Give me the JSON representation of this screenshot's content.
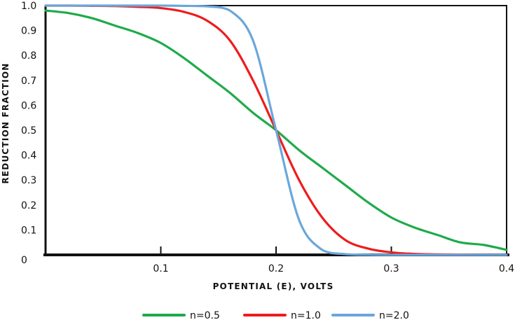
{
  "chart_data": {
    "type": "line",
    "title": "",
    "xlabel": "POTENTIAL (E), VOLTS",
    "ylabel": "REDUCTION FRACTION",
    "xlim": [
      0,
      0.4
    ],
    "ylim": [
      0,
      1.0
    ],
    "x_ticks": [
      {
        "value": 0.1,
        "label": "0.1"
      },
      {
        "value": 0.2,
        "label": "0.2"
      },
      {
        "value": 0.3,
        "label": "0.3"
      },
      {
        "value": 0.4,
        "label": "0.4"
      }
    ],
    "y_ticks": [
      {
        "value": 0,
        "label": "0"
      },
      {
        "value": 0.1,
        "label": "0.1"
      },
      {
        "value": 0.2,
        "label": "0.2"
      },
      {
        "value": 0.3,
        "label": "0.3"
      },
      {
        "value": 0.4,
        "label": "0.4"
      },
      {
        "value": 0.5,
        "label": "0.5"
      },
      {
        "value": 0.6,
        "label": "0.6"
      },
      {
        "value": 0.7,
        "label": "0.7"
      },
      {
        "value": 0.8,
        "label": "0.8"
      },
      {
        "value": 0.9,
        "label": "0.9"
      },
      {
        "value": 1.0,
        "label": "1.0"
      }
    ],
    "x": [
      0.0,
      0.02,
      0.04,
      0.06,
      0.08,
      0.1,
      0.12,
      0.14,
      0.16,
      0.18,
      0.2,
      0.22,
      0.24,
      0.26,
      0.28,
      0.3,
      0.32,
      0.34,
      0.36,
      0.38,
      0.4
    ],
    "series": [
      {
        "name": "n=0.5",
        "color": "#1faa4b",
        "values": [
          0.98,
          0.97,
          0.95,
          0.92,
          0.89,
          0.85,
          0.79,
          0.72,
          0.65,
          0.57,
          0.5,
          0.42,
          0.35,
          0.28,
          0.21,
          0.15,
          0.11,
          0.08,
          0.05,
          0.04,
          0.02
        ]
      },
      {
        "name": "n=1.0",
        "color": "#ee1c1c",
        "values": [
          1.0,
          1.0,
          0.999,
          0.998,
          0.995,
          0.99,
          0.975,
          0.94,
          0.86,
          0.7,
          0.5,
          0.3,
          0.15,
          0.06,
          0.025,
          0.01,
          0.004,
          0.002,
          0.001,
          0.0005,
          0.0002
        ]
      },
      {
        "name": "n=2.0",
        "color": "#6aa7dc",
        "values": [
          1.0,
          1.0,
          1.0,
          1.0,
          1.0,
          1.0,
          0.999,
          0.997,
          0.98,
          0.86,
          0.5,
          0.14,
          0.02,
          0.003,
          0.0005,
          0.0,
          0.0,
          0.0,
          0.0,
          0.0,
          0.0
        ]
      }
    ],
    "legend": {
      "position": "bottom",
      "entries": [
        "n=0.5",
        "n=1.0",
        "n=2.0"
      ]
    },
    "grid": false
  }
}
